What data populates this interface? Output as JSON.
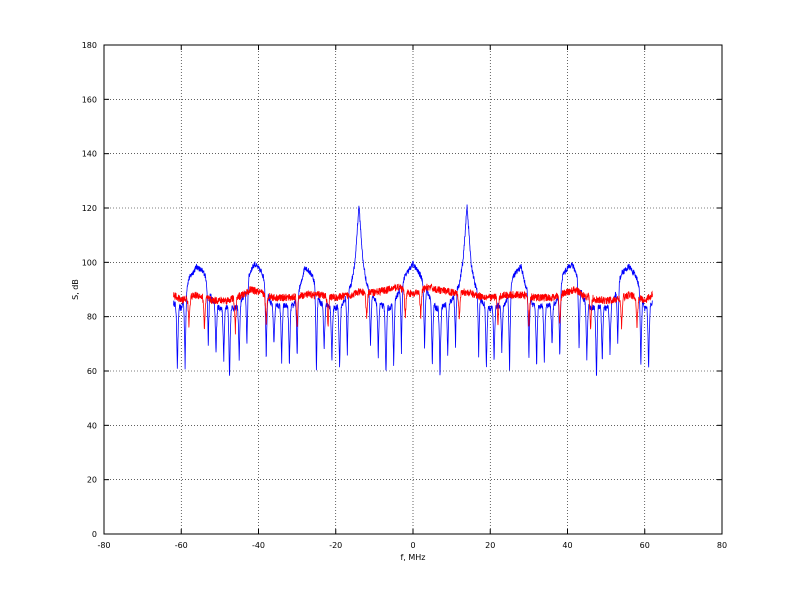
{
  "chart_data": {
    "type": "line",
    "title": "",
    "xlabel": "f, MHz",
    "ylabel": "S, dB",
    "xlim": [
      -80,
      80
    ],
    "ylim": [
      0,
      180
    ],
    "xticks": [
      -80,
      -60,
      -40,
      -20,
      0,
      20,
      40,
      60,
      80
    ],
    "yticks": [
      0,
      20,
      40,
      60,
      80,
      100,
      120,
      140,
      160,
      180
    ],
    "grid": true,
    "frequency_range": [
      -62,
      62
    ],
    "series": [
      {
        "color": "#0000ff",
        "envelope": [
          [
            -62,
            85
          ],
          [
            -60,
            83
          ],
          [
            -58,
            94
          ],
          [
            -56,
            98.5
          ],
          [
            -54,
            96
          ],
          [
            -52,
            86
          ],
          [
            -50,
            83
          ],
          [
            -48,
            84
          ],
          [
            -46,
            83
          ],
          [
            -44,
            87
          ],
          [
            -42,
            97
          ],
          [
            -41,
            99.5
          ],
          [
            -39,
            96
          ],
          [
            -37,
            85
          ],
          [
            -35,
            84
          ],
          [
            -33,
            84
          ],
          [
            -31,
            84
          ],
          [
            -29,
            92
          ],
          [
            -28,
            98.5
          ],
          [
            -26,
            95
          ],
          [
            -24,
            85
          ],
          [
            -22,
            84
          ],
          [
            -20,
            83
          ],
          [
            -18,
            85
          ],
          [
            -16,
            92
          ],
          [
            -15,
            100
          ],
          [
            -14,
            121
          ],
          [
            -13,
            101
          ],
          [
            -12,
            92
          ],
          [
            -10,
            86
          ],
          [
            -8,
            84
          ],
          [
            -6,
            83
          ],
          [
            -4,
            88
          ],
          [
            -2,
            95
          ],
          [
            0,
            99.5
          ],
          [
            2,
            95
          ],
          [
            4,
            88
          ],
          [
            6,
            83
          ],
          [
            8,
            84
          ],
          [
            10,
            86
          ],
          [
            12,
            92
          ],
          [
            13,
            101
          ],
          [
            14,
            121
          ],
          [
            15,
            100
          ],
          [
            16,
            92
          ],
          [
            18,
            85
          ],
          [
            20,
            83
          ],
          [
            22,
            84
          ],
          [
            24,
            85
          ],
          [
            26,
            95
          ],
          [
            28,
            98.5
          ],
          [
            29,
            92
          ],
          [
            31,
            84
          ],
          [
            33,
            84
          ],
          [
            35,
            84
          ],
          [
            37,
            85
          ],
          [
            39,
            96
          ],
          [
            41,
            99.5
          ],
          [
            42,
            97
          ],
          [
            44,
            87
          ],
          [
            46,
            83
          ],
          [
            48,
            84
          ],
          [
            50,
            83
          ],
          [
            52,
            86
          ],
          [
            54,
            96
          ],
          [
            56,
            98.5
          ],
          [
            58,
            94
          ],
          [
            60,
            83
          ],
          [
            62,
            85
          ]
        ],
        "nulls": [
          [
            -61,
            60
          ],
          [
            -59,
            61
          ],
          [
            -53,
            69
          ],
          [
            -51,
            66
          ],
          [
            -49,
            63
          ],
          [
            -47.5,
            56
          ],
          [
            -45,
            63
          ],
          [
            -43,
            68
          ],
          [
            -38,
            64
          ],
          [
            -36,
            69
          ],
          [
            -34,
            63
          ],
          [
            -32,
            61
          ],
          [
            -30,
            64
          ],
          [
            -25,
            59
          ],
          [
            -23,
            67
          ],
          [
            -21,
            63
          ],
          [
            -19,
            60
          ],
          [
            -17,
            66
          ],
          [
            -11,
            69
          ],
          [
            -9,
            65
          ],
          [
            -7,
            57
          ],
          [
            -5,
            62
          ],
          [
            -3,
            67
          ],
          [
            3,
            67
          ],
          [
            5,
            62
          ],
          [
            7,
            57
          ],
          [
            9,
            65
          ],
          [
            11,
            69
          ],
          [
            17,
            66
          ],
          [
            19,
            60
          ],
          [
            21,
            63
          ],
          [
            23,
            67
          ],
          [
            25,
            59
          ],
          [
            30,
            64
          ],
          [
            32,
            61
          ],
          [
            34,
            63
          ],
          [
            36,
            69
          ],
          [
            38,
            64
          ],
          [
            43,
            68
          ],
          [
            45,
            63
          ],
          [
            47.5,
            56
          ],
          [
            49,
            63
          ],
          [
            51,
            66
          ],
          [
            53,
            69
          ],
          [
            59,
            61
          ],
          [
            61,
            60
          ]
        ]
      },
      {
        "color": "#ff0000",
        "envelope": [
          [
            -62,
            88
          ],
          [
            -60,
            86
          ],
          [
            -56,
            88
          ],
          [
            -52,
            86
          ],
          [
            -48,
            86
          ],
          [
            -44,
            88
          ],
          [
            -42,
            90
          ],
          [
            -40,
            89
          ],
          [
            -36,
            87
          ],
          [
            -32,
            87
          ],
          [
            -28,
            88
          ],
          [
            -24,
            88
          ],
          [
            -20,
            87
          ],
          [
            -16,
            88
          ],
          [
            -14,
            89
          ],
          [
            -10,
            89
          ],
          [
            -6,
            90
          ],
          [
            -4,
            91
          ],
          [
            0,
            88
          ],
          [
            4,
            91
          ],
          [
            6,
            90
          ],
          [
            10,
            89
          ],
          [
            14,
            89
          ],
          [
            16,
            88
          ],
          [
            20,
            87
          ],
          [
            24,
            88
          ],
          [
            28,
            88
          ],
          [
            32,
            87
          ],
          [
            36,
            87
          ],
          [
            40,
            89
          ],
          [
            42,
            90
          ],
          [
            44,
            88
          ],
          [
            48,
            86
          ],
          [
            52,
            86
          ],
          [
            56,
            88
          ],
          [
            60,
            86
          ],
          [
            62,
            88
          ]
        ],
        "nulls": [
          [
            -58,
            76
          ],
          [
            -54,
            75
          ],
          [
            -46,
            74
          ],
          [
            -38,
            76
          ],
          [
            -30,
            76
          ],
          [
            -22,
            76
          ],
          [
            -12,
            78
          ],
          [
            -2,
            79
          ],
          [
            2,
            79
          ],
          [
            12,
            78
          ],
          [
            22,
            76
          ],
          [
            30,
            76
          ],
          [
            38,
            76
          ],
          [
            46,
            74
          ],
          [
            54,
            75
          ],
          [
            58,
            76
          ]
        ]
      }
    ]
  }
}
